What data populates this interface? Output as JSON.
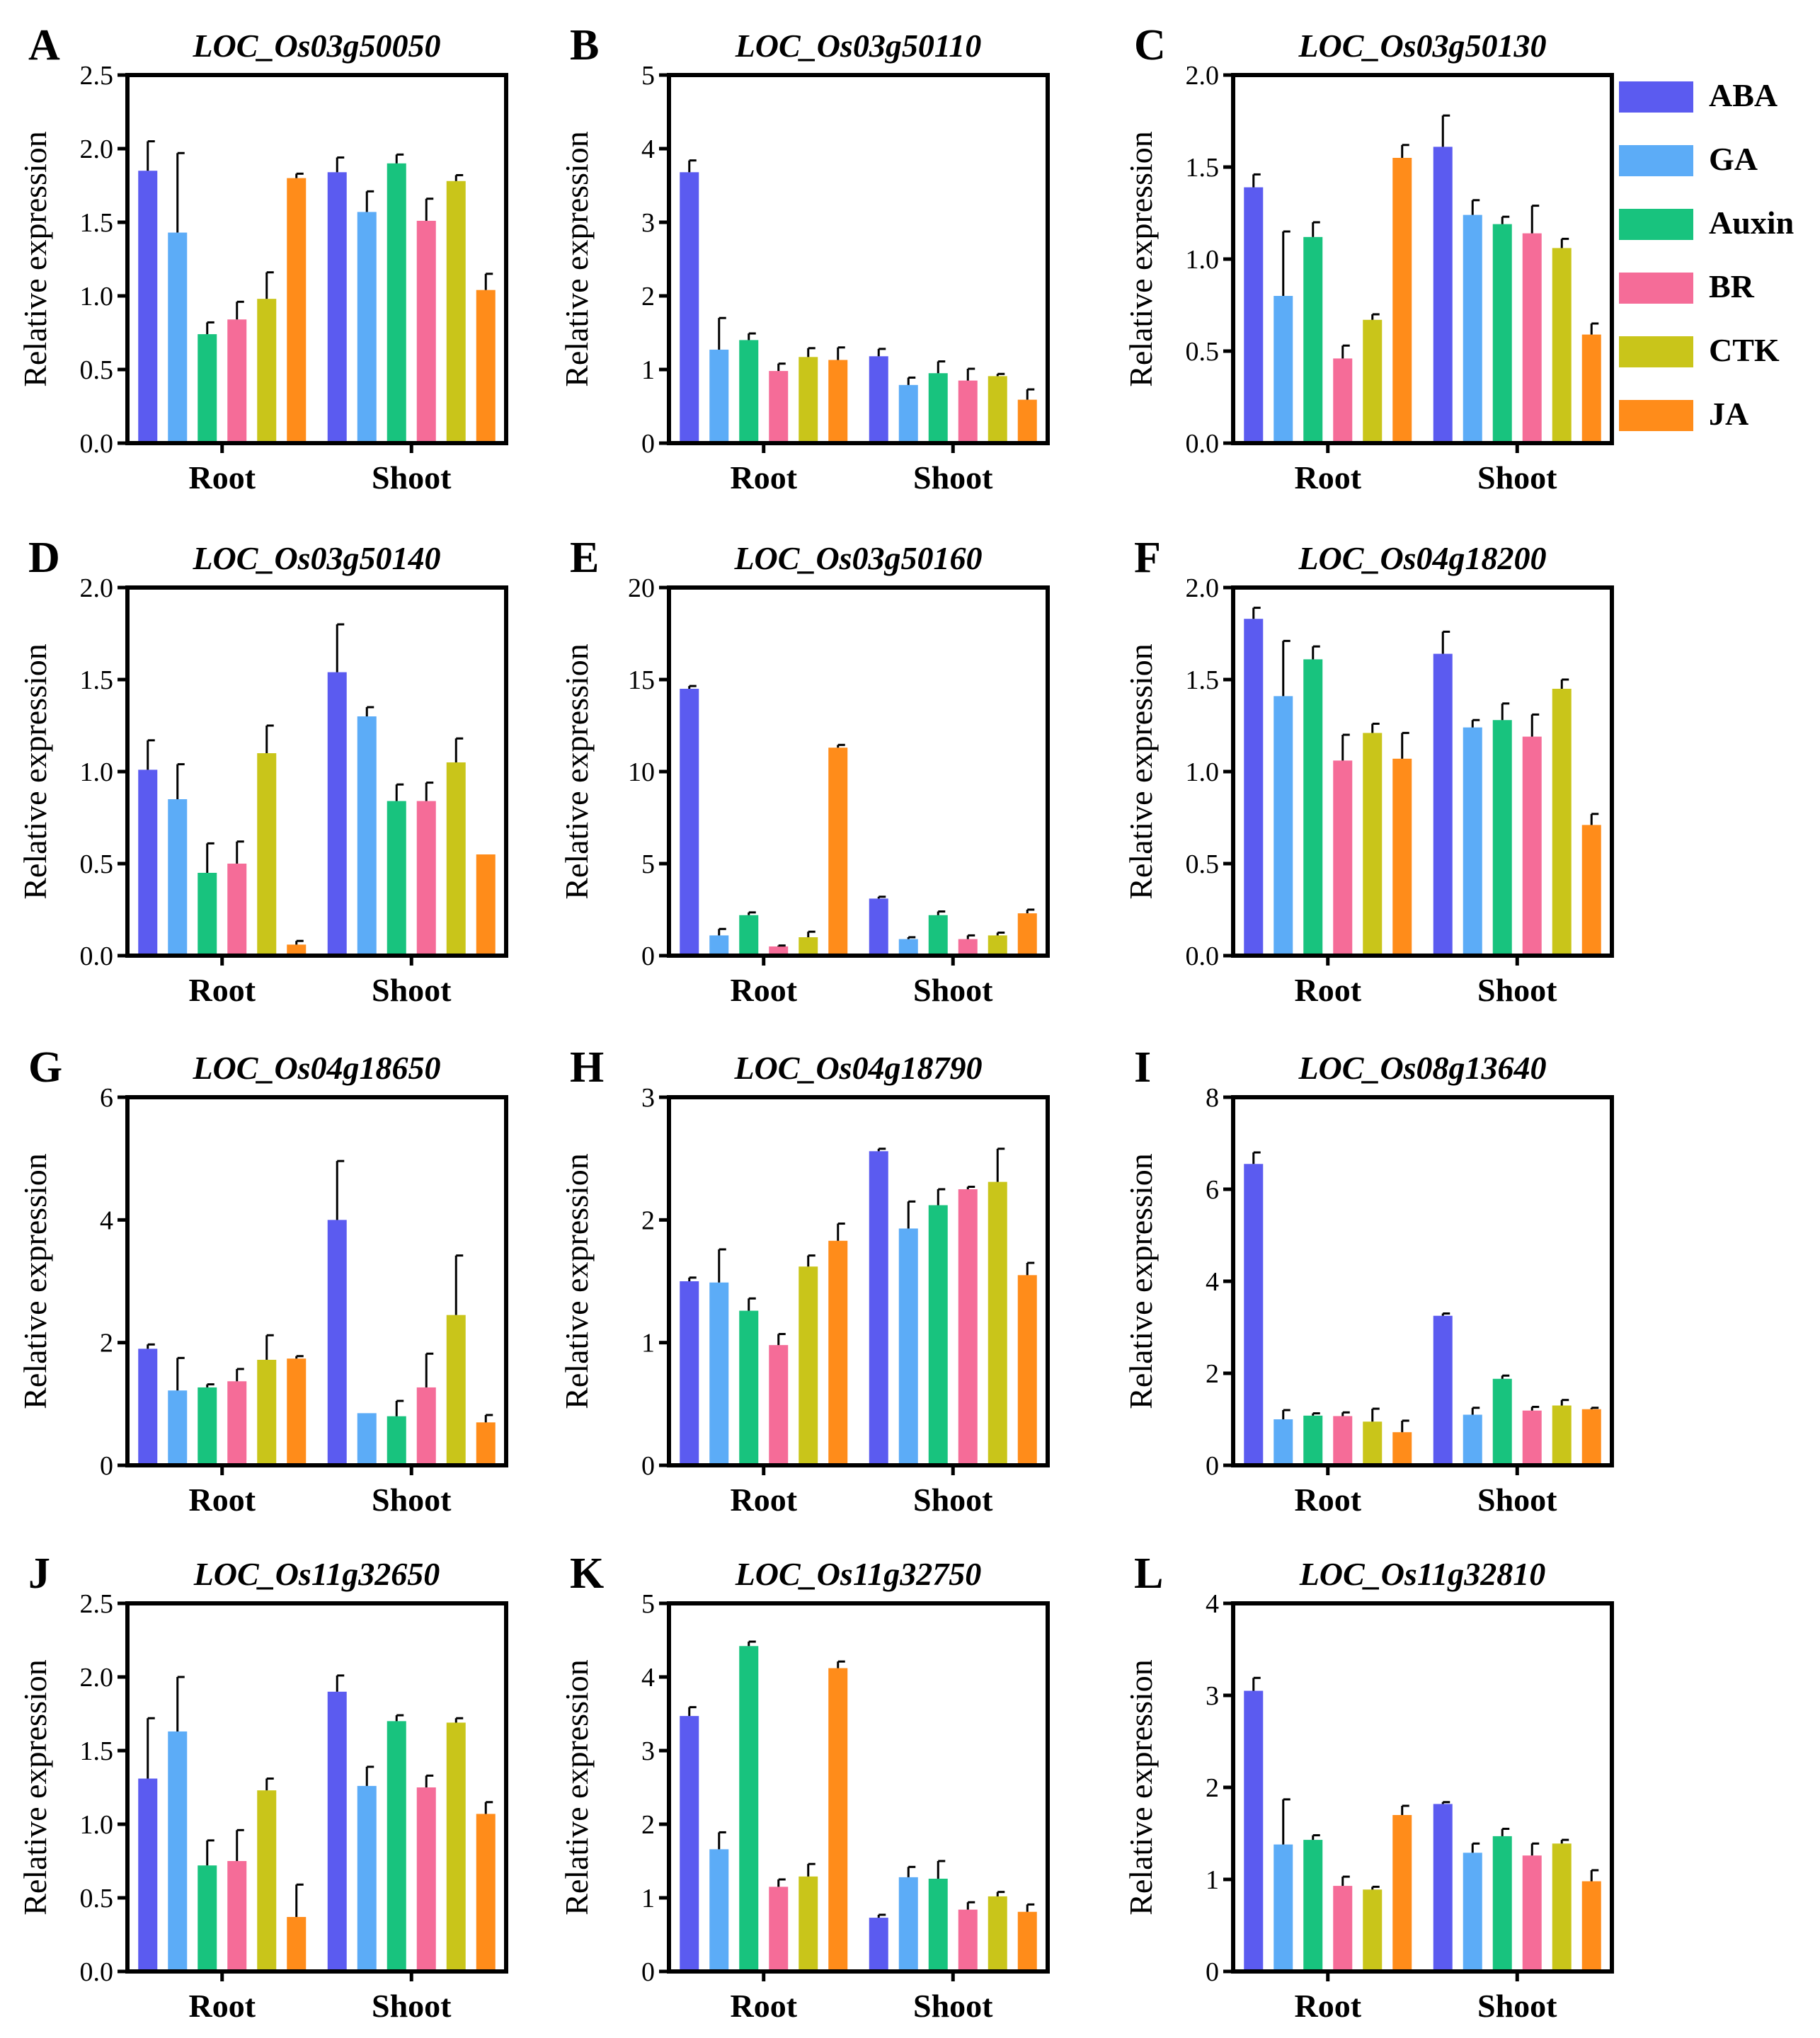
{
  "colors": {
    "ABA": "#5b5bf0",
    "GA": "#5cacf7",
    "Auxin": "#18c37e",
    "BR": "#f56c98",
    "CTK": "#c9c51a",
    "JA": "#ff8c1a"
  },
  "legend": [
    "ABA",
    "GA",
    "Auxin",
    "BR",
    "CTK",
    "JA"
  ],
  "y_axis_title": "Relative expression",
  "chart_data": [
    {
      "letter": "A",
      "title": "LOC_Os03g50050",
      "type": "bar",
      "categories": [
        "Root",
        "Shoot"
      ],
      "ylim": [
        0,
        2.5
      ],
      "yticks": [
        "0.0",
        "0.5",
        "1.0",
        "1.5",
        "2.0",
        "2.5"
      ],
      "series": [
        {
          "name": "ABA",
          "values": [
            1.85,
            1.84
          ],
          "err": [
            0.2,
            0.1
          ]
        },
        {
          "name": "GA",
          "values": [
            1.43,
            1.57
          ],
          "err": [
            0.54,
            0.14
          ]
        },
        {
          "name": "Auxin",
          "values": [
            0.74,
            1.9
          ],
          "err": [
            0.08,
            0.06
          ]
        },
        {
          "name": "BR",
          "values": [
            0.84,
            1.51
          ],
          "err": [
            0.12,
            0.15
          ]
        },
        {
          "name": "CTK",
          "values": [
            0.98,
            1.78
          ],
          "err": [
            0.18,
            0.04
          ]
        },
        {
          "name": "JA",
          "values": [
            1.8,
            1.04
          ],
          "err": [
            0.03,
            0.11
          ]
        }
      ]
    },
    {
      "letter": "B",
      "title": "LOC_Os03g50110",
      "type": "bar",
      "categories": [
        "Root",
        "Shoot"
      ],
      "ylim": [
        0,
        5
      ],
      "yticks": [
        "0",
        "1",
        "2",
        "3",
        "4",
        "5"
      ],
      "series": [
        {
          "name": "ABA",
          "values": [
            3.68,
            1.18
          ],
          "err": [
            0.16,
            0.1
          ]
        },
        {
          "name": "GA",
          "values": [
            1.27,
            0.79
          ],
          "err": [
            0.43,
            0.1
          ]
        },
        {
          "name": "Auxin",
          "values": [
            1.4,
            0.95
          ],
          "err": [
            0.09,
            0.16
          ]
        },
        {
          "name": "BR",
          "values": [
            0.98,
            0.85
          ],
          "err": [
            0.1,
            0.16
          ]
        },
        {
          "name": "CTK",
          "values": [
            1.17,
            0.91
          ],
          "err": [
            0.12,
            0.03
          ]
        },
        {
          "name": "JA",
          "values": [
            1.13,
            0.59
          ],
          "err": [
            0.17,
            0.14
          ]
        }
      ]
    },
    {
      "letter": "C",
      "title": "LOC_Os03g50130",
      "type": "bar",
      "categories": [
        "Root",
        "Shoot"
      ],
      "ylim": [
        0,
        2.0
      ],
      "yticks": [
        "0.0",
        "0.5",
        "1.0",
        "1.5",
        "2.0"
      ],
      "series": [
        {
          "name": "ABA",
          "values": [
            1.39,
            1.61
          ],
          "err": [
            0.07,
            0.17
          ]
        },
        {
          "name": "GA",
          "values": [
            0.8,
            1.24
          ],
          "err": [
            0.35,
            0.08
          ]
        },
        {
          "name": "Auxin",
          "values": [
            1.12,
            1.19
          ],
          "err": [
            0.08,
            0.04
          ]
        },
        {
          "name": "BR",
          "values": [
            0.46,
            1.14
          ],
          "err": [
            0.07,
            0.15
          ]
        },
        {
          "name": "CTK",
          "values": [
            0.67,
            1.06
          ],
          "err": [
            0.03,
            0.05
          ]
        },
        {
          "name": "JA",
          "values": [
            1.55,
            0.59
          ],
          "err": [
            0.07,
            0.06
          ]
        }
      ]
    },
    {
      "letter": "D",
      "title": "LOC_Os03g50140",
      "type": "bar",
      "categories": [
        "Root",
        "Shoot"
      ],
      "ylim": [
        0,
        2.0
      ],
      "yticks": [
        "0.0",
        "0.5",
        "1.0",
        "1.5",
        "2.0"
      ],
      "series": [
        {
          "name": "ABA",
          "values": [
            1.01,
            1.54
          ],
          "err": [
            0.16,
            0.26
          ]
        },
        {
          "name": "GA",
          "values": [
            0.85,
            1.3
          ],
          "err": [
            0.19,
            0.05
          ]
        },
        {
          "name": "Auxin",
          "values": [
            0.45,
            0.84
          ],
          "err": [
            0.16,
            0.09
          ]
        },
        {
          "name": "BR",
          "values": [
            0.5,
            0.84
          ],
          "err": [
            0.12,
            0.1
          ]
        },
        {
          "name": "CTK",
          "values": [
            1.1,
            1.05
          ],
          "err": [
            0.15,
            0.13
          ]
        },
        {
          "name": "JA",
          "values": [
            0.06,
            0.55
          ],
          "err": [
            0.02,
            0.0
          ]
        }
      ]
    },
    {
      "letter": "E",
      "title": "LOC_Os03g50160",
      "type": "bar",
      "categories": [
        "Root",
        "Shoot"
      ],
      "ylim": [
        0,
        20
      ],
      "yticks": [
        "0",
        "5",
        "10",
        "15",
        "20"
      ],
      "series": [
        {
          "name": "ABA",
          "values": [
            14.5,
            3.1
          ],
          "err": [
            0.15,
            0.1
          ]
        },
        {
          "name": "GA",
          "values": [
            1.1,
            0.9
          ],
          "err": [
            0.35,
            0.1
          ]
        },
        {
          "name": "Auxin",
          "values": [
            2.2,
            2.2
          ],
          "err": [
            0.15,
            0.2
          ]
        },
        {
          "name": "BR",
          "values": [
            0.5,
            0.9
          ],
          "err": [
            0.05,
            0.2
          ]
        },
        {
          "name": "CTK",
          "values": [
            1.0,
            1.1
          ],
          "err": [
            0.3,
            0.15
          ]
        },
        {
          "name": "JA",
          "values": [
            11.3,
            2.3
          ],
          "err": [
            0.15,
            0.2
          ]
        }
      ]
    },
    {
      "letter": "F",
      "title": "LOC_Os04g18200",
      "type": "bar",
      "categories": [
        "Root",
        "Shoot"
      ],
      "ylim": [
        0,
        2.0
      ],
      "yticks": [
        "0.0",
        "0.5",
        "1.0",
        "1.5",
        "2.0"
      ],
      "series": [
        {
          "name": "ABA",
          "values": [
            1.83,
            1.64
          ],
          "err": [
            0.06,
            0.12
          ]
        },
        {
          "name": "GA",
          "values": [
            1.41,
            1.24
          ],
          "err": [
            0.3,
            0.04
          ]
        },
        {
          "name": "Auxin",
          "values": [
            1.61,
            1.28
          ],
          "err": [
            0.07,
            0.09
          ]
        },
        {
          "name": "BR",
          "values": [
            1.06,
            1.19
          ],
          "err": [
            0.14,
            0.12
          ]
        },
        {
          "name": "CTK",
          "values": [
            1.21,
            1.45
          ],
          "err": [
            0.05,
            0.05
          ]
        },
        {
          "name": "JA",
          "values": [
            1.07,
            0.71
          ],
          "err": [
            0.14,
            0.06
          ]
        }
      ]
    },
    {
      "letter": "G",
      "title": "LOC_Os04g18650",
      "type": "bar",
      "categories": [
        "Root",
        "Shoot"
      ],
      "ylim": [
        0,
        6
      ],
      "yticks": [
        "0",
        "2",
        "4",
        "6"
      ],
      "series": [
        {
          "name": "ABA",
          "values": [
            1.9,
            4.0
          ],
          "err": [
            0.07,
            0.96
          ]
        },
        {
          "name": "GA",
          "values": [
            1.22,
            0.85
          ],
          "err": [
            0.53,
            0.0
          ]
        },
        {
          "name": "Auxin",
          "values": [
            1.27,
            0.8
          ],
          "err": [
            0.05,
            0.25
          ]
        },
        {
          "name": "BR",
          "values": [
            1.37,
            1.27
          ],
          "err": [
            0.2,
            0.55
          ]
        },
        {
          "name": "CTK",
          "values": [
            1.72,
            2.45
          ],
          "err": [
            0.4,
            0.97
          ]
        },
        {
          "name": "JA",
          "values": [
            1.74,
            0.7
          ],
          "err": [
            0.04,
            0.12
          ]
        }
      ]
    },
    {
      "letter": "H",
      "title": "LOC_Os04g18790",
      "type": "bar",
      "categories": [
        "Root",
        "Shoot"
      ],
      "ylim": [
        0,
        3
      ],
      "yticks": [
        "0",
        "1",
        "2",
        "3"
      ],
      "series": [
        {
          "name": "ABA",
          "values": [
            1.5,
            2.56
          ],
          "err": [
            0.03,
            0.02
          ]
        },
        {
          "name": "GA",
          "values": [
            1.49,
            1.93
          ],
          "err": [
            0.27,
            0.22
          ]
        },
        {
          "name": "Auxin",
          "values": [
            1.26,
            2.12
          ],
          "err": [
            0.1,
            0.13
          ]
        },
        {
          "name": "BR",
          "values": [
            0.98,
            2.25
          ],
          "err": [
            0.09,
            0.02
          ]
        },
        {
          "name": "CTK",
          "values": [
            1.62,
            2.31
          ],
          "err": [
            0.09,
            0.27
          ]
        },
        {
          "name": "JA",
          "values": [
            1.83,
            1.55
          ],
          "err": [
            0.14,
            0.1
          ]
        }
      ]
    },
    {
      "letter": "I",
      "title": "LOC_Os08g13640",
      "type": "bar",
      "categories": [
        "Root",
        "Shoot"
      ],
      "ylim": [
        0,
        8
      ],
      "yticks": [
        "0",
        "2",
        "4",
        "6",
        "8"
      ],
      "series": [
        {
          "name": "ABA",
          "values": [
            6.55,
            3.25
          ],
          "err": [
            0.25,
            0.05
          ]
        },
        {
          "name": "GA",
          "values": [
            1.0,
            1.1
          ],
          "err": [
            0.2,
            0.15
          ]
        },
        {
          "name": "Auxin",
          "values": [
            1.08,
            1.88
          ],
          "err": [
            0.05,
            0.07
          ]
        },
        {
          "name": "BR",
          "values": [
            1.07,
            1.19
          ],
          "err": [
            0.08,
            0.08
          ]
        },
        {
          "name": "CTK",
          "values": [
            0.95,
            1.3
          ],
          "err": [
            0.28,
            0.12
          ]
        },
        {
          "name": "JA",
          "values": [
            0.72,
            1.22
          ],
          "err": [
            0.25,
            0.03
          ]
        }
      ]
    },
    {
      "letter": "J",
      "title": "LOC_Os11g32650",
      "type": "bar",
      "categories": [
        "Root",
        "Shoot"
      ],
      "ylim": [
        0,
        2.5
      ],
      "yticks": [
        "0.0",
        "0.5",
        "1.0",
        "1.5",
        "2.0",
        "2.5"
      ],
      "series": [
        {
          "name": "ABA",
          "values": [
            1.31,
            1.9
          ],
          "err": [
            0.41,
            0.11
          ]
        },
        {
          "name": "GA",
          "values": [
            1.63,
            1.26
          ],
          "err": [
            0.37,
            0.13
          ]
        },
        {
          "name": "Auxin",
          "values": [
            0.72,
            1.7
          ],
          "err": [
            0.17,
            0.04
          ]
        },
        {
          "name": "BR",
          "values": [
            0.75,
            1.25
          ],
          "err": [
            0.21,
            0.08
          ]
        },
        {
          "name": "CTK",
          "values": [
            1.23,
            1.69
          ],
          "err": [
            0.08,
            0.03
          ]
        },
        {
          "name": "JA",
          "values": [
            0.37,
            1.07
          ],
          "err": [
            0.22,
            0.08
          ]
        }
      ]
    },
    {
      "letter": "K",
      "title": "LOC_Os11g32750",
      "type": "bar",
      "categories": [
        "Root",
        "Shoot"
      ],
      "ylim": [
        0,
        5
      ],
      "yticks": [
        "0",
        "1",
        "2",
        "3",
        "4",
        "5"
      ],
      "series": [
        {
          "name": "ABA",
          "values": [
            3.47,
            0.73
          ],
          "err": [
            0.12,
            0.04
          ]
        },
        {
          "name": "GA",
          "values": [
            1.66,
            1.28
          ],
          "err": [
            0.23,
            0.14
          ]
        },
        {
          "name": "Auxin",
          "values": [
            4.42,
            1.26
          ],
          "err": [
            0.06,
            0.24
          ]
        },
        {
          "name": "BR",
          "values": [
            1.15,
            0.84
          ],
          "err": [
            0.1,
            0.1
          ]
        },
        {
          "name": "CTK",
          "values": [
            1.29,
            1.02
          ],
          "err": [
            0.17,
            0.06
          ]
        },
        {
          "name": "JA",
          "values": [
            4.12,
            0.81
          ],
          "err": [
            0.09,
            0.1
          ]
        }
      ]
    },
    {
      "letter": "L",
      "title": "LOC_Os11g32810",
      "type": "bar",
      "categories": [
        "Root",
        "Shoot"
      ],
      "ylim": [
        0,
        4
      ],
      "yticks": [
        "0",
        "1",
        "2",
        "3",
        "4"
      ],
      "series": [
        {
          "name": "ABA",
          "values": [
            3.05,
            1.82
          ],
          "err": [
            0.14,
            0.02
          ]
        },
        {
          "name": "GA",
          "values": [
            1.38,
            1.29
          ],
          "err": [
            0.49,
            0.1
          ]
        },
        {
          "name": "Auxin",
          "values": [
            1.43,
            1.47
          ],
          "err": [
            0.05,
            0.08
          ]
        },
        {
          "name": "BR",
          "values": [
            0.93,
            1.26
          ],
          "err": [
            0.1,
            0.13
          ]
        },
        {
          "name": "CTK",
          "values": [
            0.89,
            1.39
          ],
          "err": [
            0.03,
            0.04
          ]
        },
        {
          "name": "JA",
          "values": [
            1.7,
            0.98
          ],
          "err": [
            0.1,
            0.12
          ]
        }
      ]
    }
  ]
}
